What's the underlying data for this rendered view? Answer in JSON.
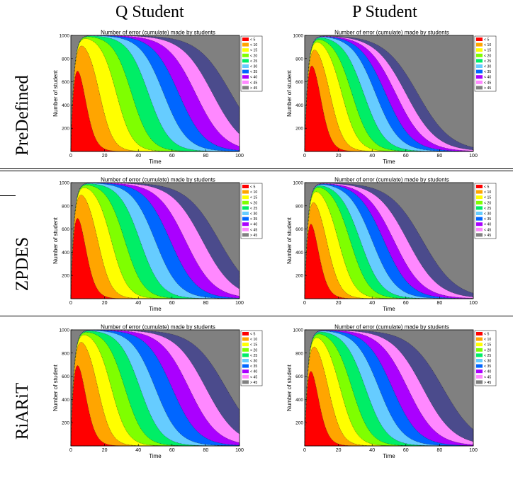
{
  "columns": [
    "Q Student",
    "P Student"
  ],
  "rows": [
    "PreDefined",
    "ZPDES",
    "RiARiT"
  ],
  "chart_common": {
    "type": "area",
    "title": "Number of error (cumulate) made by students",
    "xlabel": "Time",
    "ylabel": "Number of student",
    "xlim": [
      0,
      100
    ],
    "ylim": [
      0,
      1000
    ],
    "xticks": [
      0,
      20,
      40,
      60,
      80,
      100
    ],
    "yticks": [
      200,
      400,
      600,
      800,
      1000
    ],
    "ytick_top_label": "1000",
    "grid": false,
    "legend_position": "top-right",
    "legend": [
      "< 5",
      "< 10",
      "< 15",
      "< 20",
      "< 25",
      "< 30",
      "< 35",
      "< 40",
      "< 45",
      "> 45"
    ],
    "colors": [
      "#ff0000",
      "#ffa500",
      "#ffff00",
      "#7fff00",
      "#00ee66",
      "#66ccff",
      "#0066ff",
      "#aa00ff",
      "#ff88ff",
      "#4b4b8c",
      "#808080"
    ]
  },
  "chart_data": [
    {
      "row": "PreDefined",
      "column": "Q Student",
      "type": "area",
      "title": "Number of error (cumulate) made by students",
      "xlabel": "Time",
      "ylabel": "Number of student",
      "boundary_midpoints": [
        8,
        17,
        27,
        36,
        46,
        55,
        64,
        74,
        84,
        95
      ]
    },
    {
      "row": "PreDefined",
      "column": "P Student",
      "type": "area",
      "title": "Number of error (cumulate) made by students",
      "xlabel": "Time",
      "ylabel": "Number of student",
      "boundary_midpoints": [
        9,
        15,
        22,
        28,
        35,
        42,
        48,
        54,
        60,
        67
      ]
    },
    {
      "row": "ZPDES",
      "column": "Q Student",
      "type": "area",
      "title": "Number of error (cumulate) made by students",
      "xlabel": "Time",
      "ylabel": "Number of student",
      "boundary_midpoints": [
        8,
        16,
        24,
        32,
        41,
        50,
        59,
        68,
        78,
        88
      ]
    },
    {
      "row": "ZPDES",
      "column": "P Student",
      "type": "area",
      "title": "Number of error (cumulate) made by students",
      "xlabel": "Time",
      "ylabel": "Number of student",
      "boundary_midpoints": [
        7,
        13,
        20,
        27,
        33,
        40,
        47,
        53,
        61,
        70
      ]
    },
    {
      "row": "RiARiT",
      "column": "Q Student",
      "type": "area",
      "title": "Number of error (cumulate) made by students",
      "xlabel": "Time",
      "ylabel": "Number of student",
      "boundary_midpoints": [
        8,
        16,
        24,
        32,
        41,
        50,
        60,
        70,
        80,
        92
      ]
    },
    {
      "row": "RiARiT",
      "column": "P Student",
      "type": "area",
      "title": "Number of error (cumulate) made by students",
      "xlabel": "Time",
      "ylabel": "Number of student",
      "boundary_midpoints": [
        7,
        14,
        21,
        28,
        36,
        44,
        52,
        61,
        70,
        82
      ]
    }
  ]
}
